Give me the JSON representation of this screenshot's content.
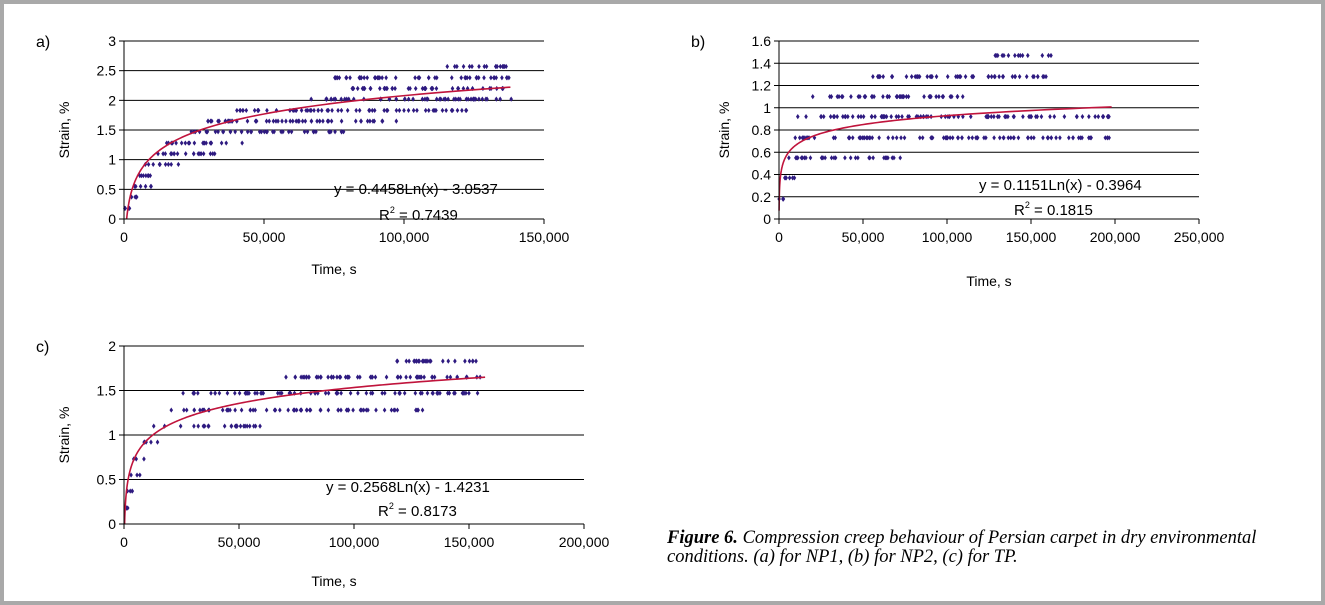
{
  "figure_caption": {
    "label": "Figure 6.",
    "text": " Compression creep behaviour of Persian carpet in dry environmental conditions. (a) for NP1, (b) for NP2, (c) for TP."
  },
  "chart_data": [
    {
      "id": "a",
      "panel_label": "a)",
      "type": "scatter",
      "xlabel": "Time, s",
      "ylabel": "Strain, %",
      "xlim": [
        0,
        150000
      ],
      "ylim": [
        0,
        3
      ],
      "x_ticks": [
        0,
        50000,
        100000,
        150000
      ],
      "x_tick_labels": [
        "0",
        "50,000",
        "100,000",
        "150,000"
      ],
      "y_ticks": [
        0,
        0.5,
        1,
        1.5,
        2,
        2.5,
        3
      ],
      "y_tick_labels": [
        "0",
        "0.5",
        "1",
        "1.5",
        "2",
        "2.5",
        "3"
      ],
      "grid": "horizontal",
      "marker_color": "#2e1a80",
      "trendline_color": "#c0143c",
      "trendline": {
        "model": "logarithmic",
        "a": 0.4458,
        "b": -3.0537,
        "x_range": [
          950,
          138000
        ]
      },
      "equation": "y = 0.4458Ln(x) - 3.0537",
      "r2_prefix": "R",
      "r2_exp": "2",
      "r2_value": " = 0.7439",
      "bands": [
        {
          "y": 0.18,
          "x": [
            0,
            4000
          ]
        },
        {
          "y": 0.37,
          "x": [
            1000,
            7000
          ]
        },
        {
          "y": 0.55,
          "x": [
            3000,
            10000
          ]
        },
        {
          "y": 0.73,
          "x": [
            5000,
            13000
          ]
        },
        {
          "y": 0.92,
          "x": [
            7000,
            20000
          ]
        },
        {
          "y": 1.1,
          "x": [
            12000,
            34000
          ]
        },
        {
          "y": 1.28,
          "x": [
            15000,
            45000
          ]
        },
        {
          "y": 1.47,
          "x": [
            22000,
            80000
          ]
        },
        {
          "y": 1.65,
          "x": [
            30000,
            100000
          ]
        },
        {
          "y": 1.83,
          "x": [
            40000,
            125000
          ]
        },
        {
          "y": 2.02,
          "x": [
            65000,
            140000
          ]
        },
        {
          "y": 2.2,
          "x": [
            80000,
            138000
          ]
        },
        {
          "y": 2.38,
          "x": [
            75000,
            138000
          ]
        },
        {
          "y": 2.57,
          "x": [
            115000,
            138000
          ]
        }
      ]
    },
    {
      "id": "b",
      "panel_label": "b)",
      "type": "scatter",
      "xlabel": "Time, s",
      "ylabel": "Strain, %",
      "xlim": [
        0,
        250000
      ],
      "ylim": [
        0,
        1.6
      ],
      "x_ticks": [
        0,
        50000,
        100000,
        150000,
        200000,
        250000
      ],
      "x_tick_labels": [
        "0",
        "50,000",
        "100,000",
        "150,000",
        "200,000",
        "250,000"
      ],
      "y_ticks": [
        0,
        0.2,
        0.4,
        0.6,
        0.8,
        1,
        1.2,
        1.4,
        1.6
      ],
      "y_tick_labels": [
        "0",
        "0.2",
        "0.4",
        "0.6",
        "0.8",
        "1",
        "1.2",
        "1.4",
        "1.6"
      ],
      "grid": "horizontal",
      "marker_color": "#2e1a80",
      "trendline_color": "#c0143c",
      "trendline": {
        "model": "logarithmic",
        "a": 0.1151,
        "b": -0.3964,
        "x_range": [
          60,
          198000
        ]
      },
      "equation": "y = 0.1151Ln(x) - 0.3964",
      "r2_prefix": "R",
      "r2_exp": "2",
      "r2_value": " = 0.1815",
      "bands": [
        {
          "y": 0.18,
          "x": [
            0,
            5000
          ]
        },
        {
          "y": 0.37,
          "x": [
            2000,
            12000
          ]
        },
        {
          "y": 0.55,
          "x": [
            5000,
            75000
          ]
        },
        {
          "y": 0.73,
          "x": [
            8000,
            198000
          ]
        },
        {
          "y": 0.92,
          "x": [
            10000,
            198000
          ]
        },
        {
          "y": 1.1,
          "x": [
            20000,
            110000
          ]
        },
        {
          "y": 1.28,
          "x": [
            55000,
            160000
          ]
        },
        {
          "y": 1.47,
          "x": [
            128000,
            162000
          ]
        }
      ]
    },
    {
      "id": "c",
      "panel_label": "c)",
      "type": "scatter",
      "xlabel": "Time, s",
      "ylabel": "Strain, %",
      "xlim": [
        0,
        200000
      ],
      "ylim": [
        0,
        2
      ],
      "x_ticks": [
        0,
        50000,
        100000,
        150000,
        200000
      ],
      "x_tick_labels": [
        "0",
        "50,000",
        "100,000",
        "150,000",
        "200,000"
      ],
      "y_ticks": [
        0,
        0.5,
        1,
        1.5,
        2
      ],
      "y_tick_labels": [
        "0",
        "0.5",
        "1",
        "1.5",
        "2"
      ],
      "grid": "horizontal",
      "marker_color": "#2e1a80",
      "trendline_color": "#c0143c",
      "trendline": {
        "model": "logarithmic",
        "a": 0.2568,
        "b": -1.4231,
        "x_range": [
          260,
          157000
        ]
      },
      "equation": "y = 0.2568Ln(x) - 1.4231",
      "r2_prefix": "R",
      "r2_exp": "2",
      "r2_value": " = 0.8173",
      "bands": [
        {
          "y": 0.18,
          "x": [
            0,
            2000
          ]
        },
        {
          "y": 0.37,
          "x": [
            1000,
            4000
          ]
        },
        {
          "y": 0.55,
          "x": [
            2000,
            7000
          ]
        },
        {
          "y": 0.73,
          "x": [
            4000,
            10000
          ]
        },
        {
          "y": 0.92,
          "x": [
            7000,
            16000
          ]
        },
        {
          "y": 1.1,
          "x": [
            12000,
            60000
          ]
        },
        {
          "y": 1.28,
          "x": [
            20000,
            130000
          ]
        },
        {
          "y": 1.47,
          "x": [
            25000,
            155000
          ]
        },
        {
          "y": 1.65,
          "x": [
            70000,
            157000
          ]
        },
        {
          "y": 1.83,
          "x": [
            118000,
            157000
          ]
        }
      ]
    }
  ]
}
